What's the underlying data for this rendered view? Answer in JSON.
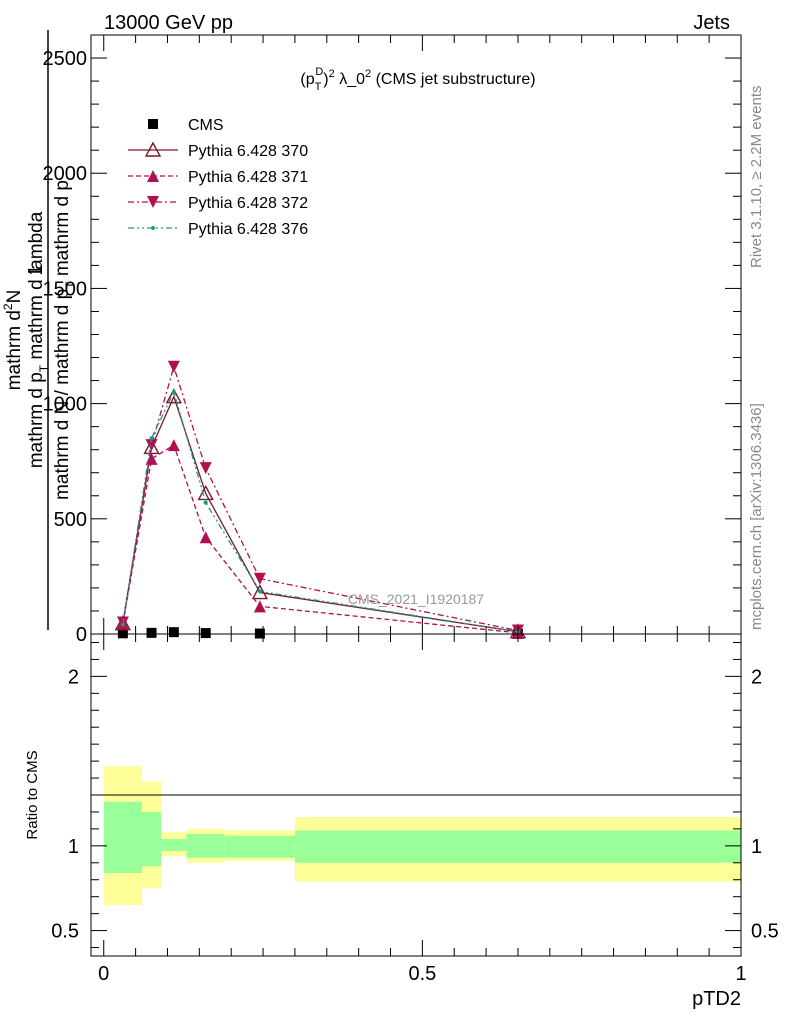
{
  "header": {
    "left": "13000 GeV pp",
    "right": "Jets"
  },
  "side_text": {
    "rivet": "Rivet 3.1.10, ≥ 2.2M events",
    "mcplots": "mcplots.cern.ch [arXiv:1306.3436]"
  },
  "watermark": "CMS_2021_I1920187",
  "colors": {
    "cms": "#000000",
    "py370": "#7a1a22",
    "py371": "#b01050",
    "py372": "#b01050",
    "py376": "#1a9a8a",
    "band_inner": "#99ff99",
    "band_outer": "#ffff99"
  },
  "chart_data": [
    {
      "type": "line",
      "title_parts": {
        "p": "(p",
        "T": "T",
        "D": "D",
        "sq1": "2",
        "lam": " λ_0",
        "sq2": "2",
        "rest": " (CMS jet substructure)"
      },
      "ylabel_top": "1",
      "ylabel_bottom": "mathrm d N / mathrm d p_T mathrm d p_T mathrm d lambda",
      "ylabel_top_num": "mathrm d²N",
      "ylabel_parts": {
        "line1": "mathrm d",
        "sup": "2",
        "line1b": "N",
        "line2": "mathrm d p",
        "sub": "T",
        "line2b": " mathrm d lambda",
        "frac_top": "1",
        "frac_bottom_a": "mathrm d N / mathrm d p",
        "frac_sub": "T",
        "frac_bottom_b": " mathrm d p"
      },
      "ylim": [
        0,
        2600
      ],
      "xlim": [
        -0.02,
        1.0
      ],
      "y_ticks": [
        0,
        500,
        1000,
        1500,
        2000,
        2500
      ],
      "y_tick_labels": [
        "0",
        "500",
        "1000",
        "1500",
        "2000",
        "2500"
      ],
      "legend": [
        {
          "key": "cms",
          "name": "CMS"
        },
        {
          "key": "py370",
          "name": "Pythia 6.428 370"
        },
        {
          "key": "py371",
          "name": "Pythia 6.428 371"
        },
        {
          "key": "py372",
          "name": "Pythia 6.428 372"
        },
        {
          "key": "py376",
          "name": "Pythia 6.428 376"
        }
      ],
      "series": [
        {
          "key": "cms",
          "name": "CMS",
          "x": [
            0.03,
            0.075,
            0.11,
            0.16,
            0.245,
            0.65
          ],
          "y": [
            3,
            5,
            8,
            4,
            2,
            0.5
          ]
        },
        {
          "key": "py370",
          "name": "Pythia 6.428 370",
          "x": [
            0.03,
            0.075,
            0.11,
            0.16,
            0.245,
            0.65
          ],
          "y": [
            45,
            810,
            1030,
            610,
            180,
            10
          ]
        },
        {
          "key": "py371",
          "name": "Pythia 6.428 371",
          "x": [
            0.03,
            0.075,
            0.11,
            0.16,
            0.245,
            0.65
          ],
          "y": [
            45,
            760,
            820,
            420,
            120,
            5
          ]
        },
        {
          "key": "py372",
          "name": "Pythia 6.428 372",
          "x": [
            0.03,
            0.075,
            0.11,
            0.16,
            0.245,
            0.65
          ],
          "y": [
            50,
            820,
            1160,
            720,
            240,
            15
          ]
        },
        {
          "key": "py376",
          "name": "Pythia 6.428 376",
          "x": [
            0.03,
            0.075,
            0.11,
            0.16,
            0.245,
            0.65
          ],
          "y": [
            40,
            850,
            1050,
            570,
            185,
            10
          ]
        }
      ]
    },
    {
      "type": "area",
      "ylabel": "Ratio to CMS",
      "xlabel": "pTD2",
      "xlim": [
        -0.02,
        1.0
      ],
      "ylim": [
        0.35,
        2.25
      ],
      "x_ticks": [
        0,
        0.5,
        1
      ],
      "x_tick_labels": [
        "0",
        "0.5",
        "1"
      ],
      "y_ticks": [
        0.5,
        1,
        2
      ],
      "y_tick_labels": [
        "0.5",
        "1",
        "2"
      ],
      "bins": [
        {
          "lo": 0.0,
          "hi": 0.06,
          "inner": [
            0.84,
            1.26
          ],
          "outer": [
            0.65,
            1.47
          ]
        },
        {
          "lo": 0.06,
          "hi": 0.09,
          "inner": [
            0.88,
            1.2
          ],
          "outer": [
            0.75,
            1.38
          ]
        },
        {
          "lo": 0.09,
          "hi": 0.13,
          "inner": [
            0.97,
            1.04
          ],
          "outer": [
            0.94,
            1.08
          ]
        },
        {
          "lo": 0.13,
          "hi": 0.19,
          "inner": [
            0.93,
            1.07
          ],
          "outer": [
            0.9,
            1.1
          ]
        },
        {
          "lo": 0.19,
          "hi": 0.3,
          "inner": [
            0.93,
            1.06
          ],
          "outer": [
            0.91,
            1.09
          ]
        },
        {
          "lo": 0.3,
          "hi": 1.0,
          "inner": [
            0.9,
            1.09
          ],
          "outer": [
            0.79,
            1.17
          ]
        }
      ]
    }
  ]
}
